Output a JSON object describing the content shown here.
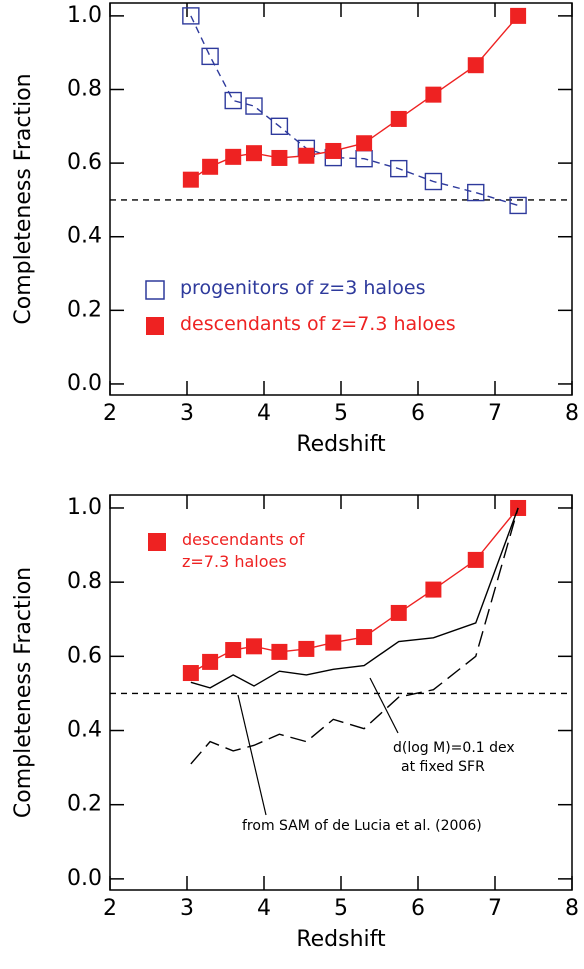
{
  "chart_data": [
    {
      "type": "line",
      "xlabel": "Redshift",
      "ylabel": "Completeness Fraction",
      "xlim": [
        2,
        8
      ],
      "xticks": [
        2,
        3,
        4,
        5,
        6,
        7,
        8
      ],
      "ylim": [
        -0.03,
        1.035
      ],
      "yticks": [
        {
          "value": 0,
          "label": "0.0"
        },
        0.2,
        0.4,
        0.6,
        0.8,
        {
          "value": 1,
          "label": "1.0"
        }
      ],
      "hline": 0.5,
      "legend": true,
      "series": [
        {
          "name": "progenitors of z=3 haloes",
          "color": "#2e3a9c",
          "marker": "open-square",
          "linestyle": "dashed",
          "x": [
            3.05,
            3.3,
            3.6,
            3.87,
            4.2,
            4.55,
            4.9,
            5.3,
            5.75,
            6.2,
            6.75,
            7.3
          ],
          "values": [
            1.0,
            0.89,
            0.77,
            0.755,
            0.7,
            0.64,
            0.615,
            0.612,
            0.585,
            0.55,
            0.52,
            0.485
          ]
        },
        {
          "name": "descendants of z=7.3 haloes",
          "color": "#ee2222",
          "marker": "filled-square",
          "linestyle": "solid",
          "x": [
            3.05,
            3.3,
            3.6,
            3.87,
            4.2,
            4.55,
            4.9,
            5.3,
            5.75,
            6.2,
            6.75,
            7.3
          ],
          "values": [
            0.555,
            0.59,
            0.617,
            0.627,
            0.614,
            0.62,
            0.633,
            0.654,
            0.72,
            0.786,
            0.866,
            1.0
          ]
        }
      ]
    },
    {
      "type": "line",
      "xlabel": "Redshift",
      "ylabel": "Completeness Fraction",
      "xlim": [
        2,
        8
      ],
      "xticks": [
        2,
        3,
        4,
        5,
        6,
        7,
        8
      ],
      "ylim": [
        -0.03,
        1.035
      ],
      "yticks": [
        {
          "value": 0,
          "label": "0.0"
        },
        0.2,
        0.4,
        0.6,
        0.8,
        {
          "value": 1,
          "label": "1.0"
        }
      ],
      "hline": 0.5,
      "legend": true,
      "series": [
        {
          "name": "descendants of z=7.3 haloes",
          "color": "#ee2222",
          "marker": "filled-square",
          "linestyle": "solid",
          "x": [
            3.05,
            3.3,
            3.6,
            3.87,
            4.2,
            4.55,
            4.9,
            5.3,
            5.75,
            6.2,
            6.75,
            7.3
          ],
          "values": [
            0.555,
            0.585,
            0.617,
            0.627,
            0.612,
            0.62,
            0.637,
            0.652,
            0.717,
            0.78,
            0.86,
            1.0
          ]
        },
        {
          "color": "#000000",
          "marker": "none",
          "linestyle": "solid",
          "x": [
            3.05,
            3.3,
            3.6,
            3.87,
            4.2,
            4.55,
            4.9,
            5.3,
            5.75,
            6.2,
            6.75,
            7.3
          ],
          "values": [
            0.53,
            0.515,
            0.55,
            0.52,
            0.56,
            0.55,
            0.565,
            0.575,
            0.64,
            0.65,
            0.69,
            1.0
          ]
        },
        {
          "color": "#000000",
          "marker": "none",
          "linestyle": "longdash",
          "x": [
            3.05,
            3.3,
            3.6,
            3.87,
            4.2,
            4.55,
            4.9,
            5.3,
            5.75,
            6.2,
            6.75,
            7.3
          ],
          "values": [
            0.31,
            0.37,
            0.345,
            0.36,
            0.39,
            0.37,
            0.43,
            0.405,
            0.49,
            0.51,
            0.6,
            1.0
          ]
        }
      ],
      "annotations": [
        {
          "lines": [
            "d(log M)=0.1 dex",
            "at fixed SFR"
          ]
        },
        {
          "lines": [
            "from SAM of de Lucia et al. (2006)"
          ]
        }
      ]
    }
  ]
}
